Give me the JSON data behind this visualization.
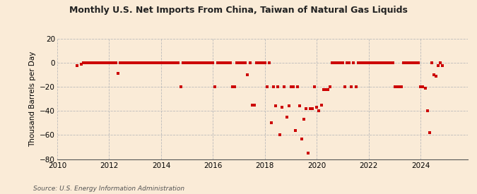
{
  "title": "Monthly U.S. Net Imports From China, Taiwan of Natural Gas Liquids",
  "ylabel": "Thousand Barrels per Day",
  "source": "Source: U.S. Energy Information Administration",
  "background_color": "#faebd7",
  "plot_bg_color": "#faebd7",
  "marker_color": "#cc0000",
  "ylim": [
    -80,
    20
  ],
  "yticks": [
    -80,
    -60,
    -40,
    -20,
    0,
    20
  ],
  "xlim_start": 2010.0,
  "xlim_end": 2025.8,
  "xticks": [
    2010,
    2012,
    2014,
    2016,
    2018,
    2020,
    2022,
    2024
  ],
  "data_points": [
    [
      2010.75,
      -2
    ],
    [
      2010.917,
      -1
    ],
    [
      2011.0,
      0
    ],
    [
      2011.083,
      0
    ],
    [
      2011.167,
      0
    ],
    [
      2011.25,
      0
    ],
    [
      2011.333,
      0
    ],
    [
      2011.417,
      0
    ],
    [
      2011.5,
      0
    ],
    [
      2011.583,
      0
    ],
    [
      2011.667,
      0
    ],
    [
      2011.75,
      0
    ],
    [
      2011.833,
      0
    ],
    [
      2011.917,
      0
    ],
    [
      2012.0,
      0
    ],
    [
      2012.083,
      0
    ],
    [
      2012.167,
      0
    ],
    [
      2012.25,
      0
    ],
    [
      2012.333,
      -9
    ],
    [
      2012.417,
      0
    ],
    [
      2012.5,
      0
    ],
    [
      2012.583,
      0
    ],
    [
      2012.667,
      0
    ],
    [
      2012.75,
      0
    ],
    [
      2012.833,
      0
    ],
    [
      2012.917,
      0
    ],
    [
      2013.0,
      0
    ],
    [
      2013.083,
      0
    ],
    [
      2013.167,
      0
    ],
    [
      2013.25,
      0
    ],
    [
      2013.333,
      0
    ],
    [
      2013.417,
      0
    ],
    [
      2013.5,
      0
    ],
    [
      2013.583,
      0
    ],
    [
      2013.667,
      0
    ],
    [
      2013.75,
      0
    ],
    [
      2013.833,
      0
    ],
    [
      2013.917,
      0
    ],
    [
      2014.0,
      0
    ],
    [
      2014.083,
      0
    ],
    [
      2014.167,
      0
    ],
    [
      2014.25,
      0
    ],
    [
      2014.333,
      0
    ],
    [
      2014.417,
      0
    ],
    [
      2014.5,
      0
    ],
    [
      2014.583,
      0
    ],
    [
      2014.667,
      0
    ],
    [
      2014.75,
      -20
    ],
    [
      2014.833,
      0
    ],
    [
      2014.917,
      0
    ],
    [
      2015.0,
      0
    ],
    [
      2015.083,
      0
    ],
    [
      2015.167,
      0
    ],
    [
      2015.25,
      0
    ],
    [
      2015.333,
      0
    ],
    [
      2015.417,
      0
    ],
    [
      2015.5,
      0
    ],
    [
      2015.583,
      0
    ],
    [
      2015.667,
      0
    ],
    [
      2015.75,
      0
    ],
    [
      2015.833,
      0
    ],
    [
      2015.917,
      0
    ],
    [
      2016.0,
      0
    ],
    [
      2016.083,
      -20
    ],
    [
      2016.167,
      0
    ],
    [
      2016.25,
      0
    ],
    [
      2016.333,
      0
    ],
    [
      2016.417,
      0
    ],
    [
      2016.5,
      0
    ],
    [
      2016.583,
      0
    ],
    [
      2016.667,
      0
    ],
    [
      2016.75,
      -20
    ],
    [
      2016.833,
      -20
    ],
    [
      2016.917,
      0
    ],
    [
      2017.0,
      0
    ],
    [
      2017.083,
      0
    ],
    [
      2017.167,
      0
    ],
    [
      2017.25,
      0
    ],
    [
      2017.333,
      -10
    ],
    [
      2017.417,
      0
    ],
    [
      2017.5,
      -35
    ],
    [
      2017.583,
      -35
    ],
    [
      2017.667,
      0
    ],
    [
      2017.75,
      0
    ],
    [
      2017.833,
      0
    ],
    [
      2017.917,
      0
    ],
    [
      2018.0,
      0
    ],
    [
      2018.083,
      -20
    ],
    [
      2018.167,
      0
    ],
    [
      2018.25,
      -50
    ],
    [
      2018.333,
      -20
    ],
    [
      2018.417,
      -36
    ],
    [
      2018.5,
      -20
    ],
    [
      2018.583,
      -60
    ],
    [
      2018.667,
      -37
    ],
    [
      2018.75,
      -20
    ],
    [
      2018.833,
      -45
    ],
    [
      2018.917,
      -36
    ],
    [
      2019.0,
      -20
    ],
    [
      2019.083,
      -20
    ],
    [
      2019.167,
      -56
    ],
    [
      2019.25,
      -20
    ],
    [
      2019.333,
      -36
    ],
    [
      2019.417,
      -63
    ],
    [
      2019.5,
      -47
    ],
    [
      2019.583,
      -38
    ],
    [
      2019.667,
      -75
    ],
    [
      2019.75,
      -38
    ],
    [
      2019.833,
      -38
    ],
    [
      2019.917,
      -20
    ],
    [
      2020.0,
      -37
    ],
    [
      2020.083,
      -40
    ],
    [
      2020.167,
      -35
    ],
    [
      2020.25,
      -22
    ],
    [
      2020.333,
      -22
    ],
    [
      2020.417,
      -22
    ],
    [
      2020.5,
      -20
    ],
    [
      2020.583,
      0
    ],
    [
      2020.667,
      0
    ],
    [
      2020.75,
      0
    ],
    [
      2020.833,
      0
    ],
    [
      2020.917,
      0
    ],
    [
      2021.0,
      0
    ],
    [
      2021.083,
      -20
    ],
    [
      2021.167,
      0
    ],
    [
      2021.25,
      0
    ],
    [
      2021.333,
      -20
    ],
    [
      2021.417,
      0
    ],
    [
      2021.5,
      -20
    ],
    [
      2021.583,
      0
    ],
    [
      2021.667,
      0
    ],
    [
      2021.75,
      0
    ],
    [
      2021.833,
      0
    ],
    [
      2021.917,
      0
    ],
    [
      2022.0,
      0
    ],
    [
      2022.083,
      0
    ],
    [
      2022.167,
      0
    ],
    [
      2022.25,
      0
    ],
    [
      2022.333,
      0
    ],
    [
      2022.417,
      0
    ],
    [
      2022.5,
      0
    ],
    [
      2022.583,
      0
    ],
    [
      2022.667,
      0
    ],
    [
      2022.75,
      0
    ],
    [
      2022.833,
      0
    ],
    [
      2022.917,
      0
    ],
    [
      2023.0,
      -20
    ],
    [
      2023.083,
      -20
    ],
    [
      2023.167,
      -20
    ],
    [
      2023.25,
      -20
    ],
    [
      2023.333,
      0
    ],
    [
      2023.417,
      0
    ],
    [
      2023.5,
      0
    ],
    [
      2023.583,
      0
    ],
    [
      2023.667,
      0
    ],
    [
      2023.75,
      0
    ],
    [
      2023.833,
      0
    ],
    [
      2023.917,
      0
    ],
    [
      2024.0,
      -20
    ],
    [
      2024.083,
      -20
    ],
    [
      2024.167,
      -21
    ],
    [
      2024.25,
      -40
    ],
    [
      2024.333,
      -58
    ],
    [
      2024.417,
      0
    ],
    [
      2024.5,
      -10
    ],
    [
      2024.583,
      -11
    ],
    [
      2024.667,
      -2
    ],
    [
      2024.75,
      0
    ],
    [
      2024.833,
      -2
    ]
  ]
}
